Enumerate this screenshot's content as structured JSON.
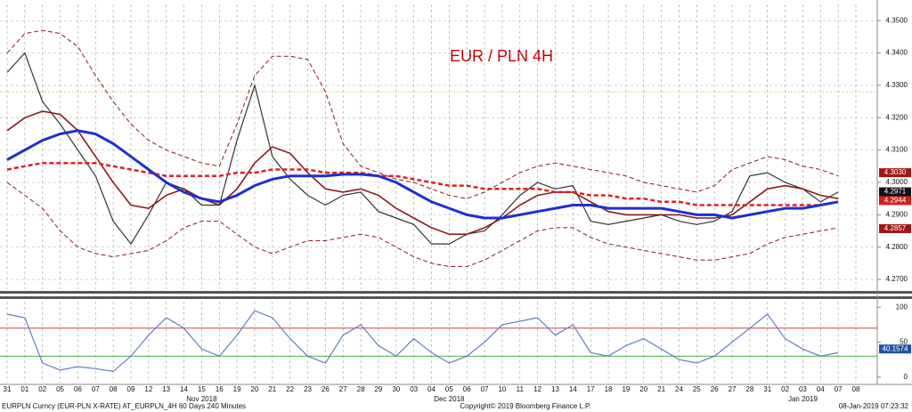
{
  "chart_data": [
    {
      "type": "line",
      "title": "EUR / PLN 4H",
      "categories": [
        "31",
        "01",
        "02",
        "05",
        "06",
        "07",
        "08",
        "09",
        "12",
        "13",
        "14",
        "15",
        "16",
        "19",
        "20",
        "21",
        "22",
        "23",
        "26",
        "27",
        "28",
        "29",
        "30",
        "03",
        "04",
        "05",
        "06",
        "07",
        "10",
        "11",
        "12",
        "13",
        "14",
        "17",
        "18",
        "19",
        "20",
        "21",
        "24",
        "25",
        "26",
        "27",
        "28",
        "31",
        "02",
        "03",
        "04",
        "07",
        "08"
      ],
      "month_labels": [
        {
          "label": "Nov 2018",
          "category_index": 11
        },
        {
          "label": "Dec 2018",
          "category_index": 25
        },
        {
          "label": "Jan 2019",
          "category_index": 45
        }
      ],
      "ylim": [
        4.267,
        4.355
      ],
      "yticks": [
        {
          "value": 4.27,
          "label": "4.2700"
        },
        {
          "value": 4.28,
          "label": "4.2800"
        },
        {
          "value": 4.29,
          "label": "4.2900"
        },
        {
          "value": 4.3,
          "label": "4.3000"
        },
        {
          "value": 4.31,
          "label": "4.3100"
        },
        {
          "value": 4.32,
          "label": "4.3200"
        },
        {
          "value": 4.33,
          "label": "4.3300"
        },
        {
          "value": 4.34,
          "label": "4.3400"
        },
        {
          "value": 4.35,
          "label": "4.3500"
        }
      ],
      "grid": true,
      "hline": {
        "value": 4.328,
        "color": "#e8a040"
      },
      "series": [
        {
          "color": "#8b1a1a",
          "dashed": true,
          "width": 1,
          "values": [
            4.34,
            4.346,
            4.347,
            4.346,
            4.342,
            4.333,
            4.325,
            4.318,
            4.313,
            4.31,
            4.308,
            4.306,
            4.305,
            4.318,
            4.333,
            4.339,
            4.339,
            4.338,
            4.328,
            4.312,
            4.305,
            4.303,
            4.301,
            4.3,
            4.298,
            4.296,
            4.295,
            4.297,
            4.3,
            4.303,
            4.305,
            4.306,
            4.305,
            4.304,
            4.303,
            4.302,
            4.3,
            4.299,
            4.298,
            4.297,
            4.299,
            4.304,
            4.306,
            4.308,
            4.307,
            4.305,
            4.304,
            4.302,
            null
          ]
        },
        {
          "color": "#8b1a1a",
          "dashed": true,
          "width": 1,
          "values": [
            4.3,
            4.296,
            4.292,
            4.285,
            4.28,
            4.278,
            4.277,
            4.278,
            4.279,
            4.282,
            4.286,
            4.288,
            4.288,
            4.284,
            4.28,
            4.278,
            4.28,
            4.282,
            4.282,
            4.283,
            4.284,
            4.283,
            4.28,
            4.277,
            4.275,
            4.274,
            4.274,
            4.276,
            4.279,
            4.282,
            4.285,
            4.286,
            4.286,
            4.283,
            4.281,
            4.28,
            4.279,
            4.278,
            4.277,
            4.276,
            4.276,
            4.277,
            4.278,
            4.281,
            4.283,
            4.284,
            4.285,
            4.286,
            null
          ]
        },
        {
          "color": "#333333",
          "dashed": false,
          "width": 1.2,
          "values": [
            4.334,
            4.34,
            4.325,
            4.318,
            4.31,
            4.302,
            4.288,
            4.281,
            4.29,
            4.3,
            4.298,
            4.293,
            4.293,
            4.313,
            4.33,
            4.308,
            4.301,
            4.296,
            4.293,
            4.296,
            4.297,
            4.291,
            4.289,
            4.287,
            4.281,
            4.281,
            4.284,
            4.285,
            4.29,
            4.296,
            4.3,
            4.298,
            4.299,
            4.288,
            4.287,
            4.288,
            4.289,
            4.29,
            4.288,
            4.287,
            4.288,
            4.291,
            4.302,
            4.303,
            4.3,
            4.298,
            4.294,
            4.297,
            null
          ]
        },
        {
          "color": "#8b1a1a",
          "dashed": false,
          "width": 1.6,
          "values": [
            4.316,
            4.32,
            4.322,
            4.321,
            4.316,
            4.308,
            4.3,
            4.293,
            4.292,
            4.296,
            4.298,
            4.295,
            4.293,
            4.298,
            4.306,
            4.311,
            4.309,
            4.303,
            4.298,
            4.297,
            4.298,
            4.296,
            4.292,
            4.289,
            4.286,
            4.284,
            4.284,
            4.286,
            4.289,
            4.293,
            4.296,
            4.297,
            4.297,
            4.294,
            4.291,
            4.29,
            4.29,
            4.29,
            4.29,
            4.289,
            4.289,
            4.29,
            4.294,
            4.298,
            4.299,
            4.298,
            4.296,
            4.295,
            null
          ]
        },
        {
          "color": "#e02020",
          "dashed": true,
          "width": 2.5,
          "values": [
            4.304,
            4.305,
            4.306,
            4.306,
            4.306,
            4.306,
            4.305,
            4.304,
            4.303,
            4.302,
            4.302,
            4.302,
            4.302,
            4.303,
            4.303,
            4.304,
            4.304,
            4.304,
            4.303,
            4.303,
            4.303,
            4.302,
            4.302,
            4.301,
            4.3,
            4.299,
            4.299,
            4.298,
            4.298,
            4.298,
            4.298,
            4.297,
            4.297,
            4.296,
            4.296,
            4.295,
            4.295,
            4.294,
            4.294,
            4.293,
            4.293,
            4.293,
            4.293,
            4.293,
            4.293,
            4.293,
            4.293,
            4.294,
            null
          ]
        },
        {
          "color": "#1f2fd0",
          "dashed": false,
          "width": 3,
          "values": [
            4.307,
            4.31,
            4.313,
            4.315,
            4.316,
            4.315,
            4.312,
            4.308,
            4.304,
            4.3,
            4.297,
            4.295,
            4.294,
            4.296,
            4.299,
            4.301,
            4.302,
            4.302,
            4.302,
            4.3025,
            4.3025,
            4.302,
            4.3,
            4.297,
            4.294,
            4.292,
            4.29,
            4.289,
            4.289,
            4.29,
            4.291,
            4.292,
            4.293,
            4.293,
            4.292,
            4.292,
            4.292,
            4.292,
            4.291,
            4.29,
            4.29,
            4.289,
            4.29,
            4.291,
            4.292,
            4.292,
            4.293,
            4.294,
            null
          ]
        }
      ],
      "last_value_tags": [
        {
          "value": 4.303,
          "label": "4.3030",
          "color": "#a01818"
        },
        {
          "value": 4.2971,
          "label": "4.2971",
          "color": "#111111"
        },
        {
          "value": 4.2944,
          "label": "4.2944",
          "color": "#d02020"
        },
        {
          "value": 4.2857,
          "label": "4.2857",
          "color": "#a01818"
        }
      ]
    },
    {
      "type": "line",
      "ylim": [
        -8,
        108
      ],
      "yticks": [
        0,
        50,
        100
      ],
      "reference_lines": [
        {
          "value": 70,
          "color": "#d04040"
        },
        {
          "value": 30,
          "color": "#40b040"
        }
      ],
      "series": [
        {
          "color": "#6080c0",
          "values": [
            90,
            85,
            20,
            10,
            15,
            12,
            8,
            30,
            60,
            85,
            70,
            40,
            30,
            60,
            95,
            85,
            55,
            30,
            20,
            60,
            75,
            45,
            30,
            55,
            35,
            20,
            30,
            50,
            75,
            80,
            85,
            60,
            75,
            35,
            30,
            45,
            55,
            40,
            25,
            20,
            30,
            50,
            70,
            90,
            55,
            40,
            30,
            35,
            null
          ]
        }
      ],
      "last_value_tags": [
        {
          "value": 40.1574,
          "label": "40.1574",
          "color": "#2050a0"
        }
      ]
    }
  ],
  "footer": {
    "security": "EURPLN Curncy (EUR-PLN X-RATE) AT_EURPLN_4H 60 Days 240 Minutes",
    "copyright": "Copyright© 2019 Bloomberg Finance L.P.",
    "timestamp": "08-Jan-2019 07:23:32"
  }
}
